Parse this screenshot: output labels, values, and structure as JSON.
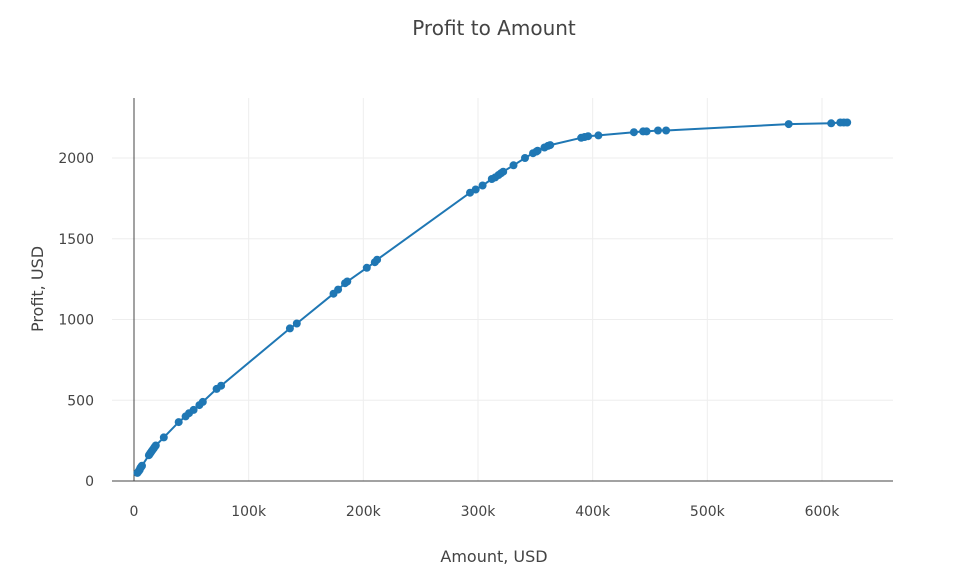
{
  "chart_data": {
    "type": "scatter",
    "mode": "lines+markers",
    "title": "Profit to Amount",
    "xlabel": "Amount, USD",
    "ylabel": "Profit, USD",
    "xlim": [
      -20000,
      660000
    ],
    "ylim": [
      -40,
      2350
    ],
    "x_ticks": [
      0,
      100000,
      200000,
      300000,
      400000,
      500000,
      600000
    ],
    "x_tick_labels": [
      "0",
      "100k",
      "200k",
      "300k",
      "400k",
      "500k",
      "600k"
    ],
    "y_ticks": [
      0,
      500,
      1000,
      1500,
      2000
    ],
    "y_tick_labels": [
      "0",
      "500",
      "1000",
      "1500",
      "2000"
    ],
    "grid": true,
    "legend": "none",
    "series": [
      {
        "color": "#1f77b4",
        "x": [
          3000,
          4000,
          4500,
          5000,
          5500,
          6000,
          6500,
          7000,
          13000,
          14000,
          15000,
          16000,
          17000,
          18000,
          19000,
          26000,
          39000,
          45000,
          48000,
          52000,
          57000,
          60000,
          72000,
          76000,
          136000,
          142000,
          174000,
          178000,
          184000,
          186000,
          203000,
          210000,
          212000,
          293000,
          298000,
          304000,
          312000,
          315000,
          318000,
          320000,
          322000,
          331000,
          341000,
          348000,
          351000,
          352000,
          358000,
          361000,
          363000,
          390000,
          393000,
          396000,
          405000,
          436000,
          444000,
          447000,
          457000,
          464000,
          571000,
          608000,
          616000,
          619000,
          622000
        ],
        "y": [
          50,
          60,
          65,
          70,
          80,
          85,
          90,
          95,
          160,
          170,
          180,
          190,
          200,
          210,
          220,
          270,
          365,
          400,
          420,
          440,
          470,
          490,
          570,
          590,
          945,
          975,
          1160,
          1185,
          1225,
          1235,
          1320,
          1355,
          1370,
          1785,
          1805,
          1830,
          1870,
          1880,
          1895,
          1905,
          1915,
          1955,
          2000,
          2030,
          2040,
          2045,
          2065,
          2075,
          2080,
          2125,
          2130,
          2135,
          2140,
          2160,
          2165,
          2165,
          2170,
          2170,
          2210,
          2215,
          2220,
          2220,
          2220
        ]
      }
    ]
  }
}
